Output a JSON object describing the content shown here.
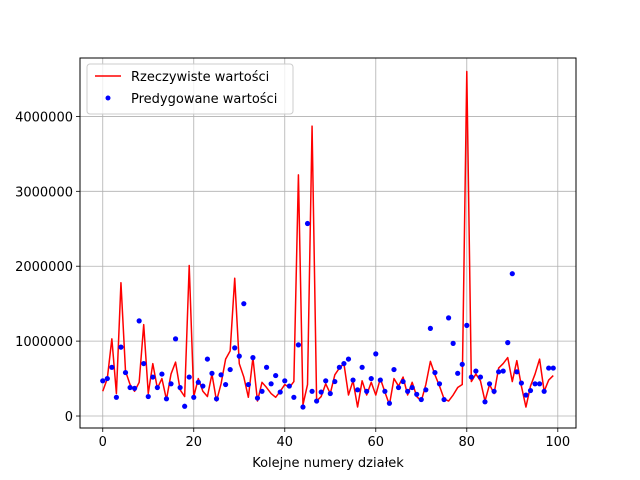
{
  "chart_data": {
    "type": "line",
    "xlabel": "Kolejne numery działek",
    "ylabel": "",
    "xlim": [
      -5,
      104
    ],
    "ylim": [
      -160000,
      4780000
    ],
    "xticks": [
      0,
      20,
      40,
      60,
      80,
      100
    ],
    "yticks": [
      0,
      1000000,
      2000000,
      3000000,
      4000000
    ],
    "grid": true,
    "legend_position": "top-left",
    "series": [
      {
        "name": "Rzeczywiste wartości",
        "style": "line",
        "color": "#ff0000",
        "x": [
          0,
          1,
          2,
          3,
          4,
          5,
          6,
          7,
          8,
          9,
          10,
          11,
          12,
          13,
          14,
          15,
          16,
          17,
          18,
          19,
          20,
          21,
          22,
          23,
          24,
          25,
          26,
          27,
          28,
          29,
          30,
          31,
          32,
          33,
          34,
          35,
          36,
          37,
          38,
          39,
          40,
          41,
          42,
          43,
          44,
          45,
          46,
          47,
          48,
          49,
          50,
          51,
          52,
          53,
          54,
          55,
          56,
          57,
          58,
          59,
          60,
          61,
          62,
          63,
          64,
          65,
          66,
          67,
          68,
          69,
          70,
          71,
          72,
          73,
          74,
          75,
          76,
          77,
          78,
          79,
          80,
          81,
          82,
          83,
          84,
          85,
          86,
          87,
          88,
          89,
          90,
          91,
          92,
          93,
          94,
          95,
          96,
          97,
          98,
          99
        ],
        "y": [
          330000,
          500000,
          1030000,
          300000,
          1780000,
          600000,
          420000,
          330000,
          450000,
          1220000,
          300000,
          700000,
          370000,
          500000,
          220000,
          560000,
          720000,
          350000,
          260000,
          2010000,
          260000,
          500000,
          330000,
          260000,
          560000,
          200000,
          430000,
          760000,
          870000,
          1840000,
          700000,
          520000,
          250000,
          780000,
          200000,
          450000,
          380000,
          300000,
          250000,
          330000,
          420000,
          380000,
          460000,
          3220000,
          150000,
          420000,
          3870000,
          200000,
          260000,
          430000,
          300000,
          550000,
          640000,
          700000,
          280000,
          470000,
          120000,
          470000,
          280000,
          450000,
          280000,
          500000,
          320000,
          150000,
          500000,
          400000,
          520000,
          280000,
          450000,
          260000,
          200000,
          420000,
          730000,
          550000,
          400000,
          230000,
          200000,
          280000,
          380000,
          420000,
          4600000,
          460000,
          560000,
          470000,
          200000,
          420000,
          300000,
          640000,
          700000,
          780000,
          460000,
          740000,
          400000,
          120000,
          400000,
          560000,
          760000,
          330000,
          480000,
          540000
        ]
      },
      {
        "name": "Predygowane wartości",
        "style": "markers",
        "color": "#0000ff",
        "x": [
          0,
          1,
          2,
          3,
          4,
          5,
          6,
          7,
          8,
          9,
          10,
          11,
          12,
          13,
          14,
          15,
          16,
          17,
          18,
          19,
          20,
          21,
          22,
          23,
          24,
          25,
          26,
          27,
          28,
          29,
          30,
          31,
          32,
          33,
          34,
          35,
          36,
          37,
          38,
          39,
          40,
          41,
          42,
          43,
          44,
          45,
          46,
          47,
          48,
          49,
          50,
          51,
          52,
          53,
          54,
          55,
          56,
          57,
          58,
          59,
          60,
          61,
          62,
          63,
          64,
          65,
          66,
          67,
          68,
          69,
          70,
          71,
          72,
          73,
          74,
          75,
          76,
          77,
          78,
          79,
          80,
          81,
          82,
          83,
          84,
          85,
          86,
          87,
          88,
          89,
          90,
          91,
          92,
          93,
          94,
          95,
          96,
          97,
          98,
          99
        ],
        "y": [
          470000,
          500000,
          650000,
          250000,
          920000,
          580000,
          380000,
          370000,
          1270000,
          700000,
          260000,
          520000,
          380000,
          560000,
          230000,
          430000,
          1030000,
          380000,
          130000,
          520000,
          250000,
          450000,
          400000,
          760000,
          570000,
          230000,
          550000,
          420000,
          620000,
          910000,
          800000,
          1500000,
          420000,
          780000,
          240000,
          330000,
          650000,
          430000,
          540000,
          320000,
          470000,
          400000,
          250000,
          950000,
          120000,
          2570000,
          330000,
          200000,
          320000,
          470000,
          300000,
          460000,
          650000,
          700000,
          760000,
          480000,
          350000,
          650000,
          330000,
          500000,
          830000,
          480000,
          330000,
          170000,
          620000,
          380000,
          460000,
          330000,
          380000,
          290000,
          220000,
          350000,
          1170000,
          580000,
          430000,
          220000,
          1310000,
          970000,
          570000,
          690000,
          1210000,
          520000,
          600000,
          520000,
          190000,
          430000,
          330000,
          590000,
          600000,
          980000,
          1900000,
          590000,
          440000,
          280000,
          340000,
          430000,
          430000,
          330000,
          640000,
          640000
        ]
      }
    ]
  }
}
